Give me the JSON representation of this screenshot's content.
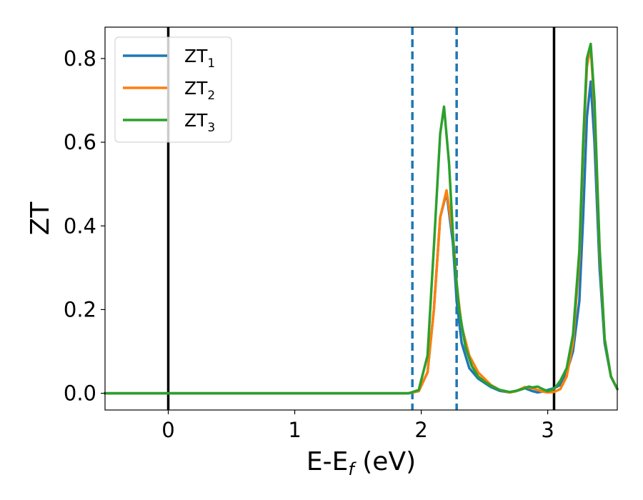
{
  "chart_data": {
    "type": "line",
    "xlabel": {
      "main": "E-E",
      "sub": "f",
      "unit": " (eV)"
    },
    "ylabel": "ZT",
    "xlim": [
      -0.5,
      3.55
    ],
    "ylim": [
      -0.04,
      0.875
    ],
    "xticks": [
      0,
      1,
      2,
      3
    ],
    "xtick_labels": [
      "0",
      "1",
      "2",
      "3"
    ],
    "yticks": [
      0.0,
      0.2,
      0.4,
      0.6,
      0.8
    ],
    "ytick_labels": [
      "0.0",
      "0.2",
      "0.4",
      "0.6",
      "0.8"
    ],
    "grid": false,
    "legend_position": "upper-left",
    "legend": [
      {
        "main": "ZT",
        "sub": "1",
        "color": "#1f77b4"
      },
      {
        "main": "ZT",
        "sub": "2",
        "color": "#ff7f0e"
      },
      {
        "main": "ZT",
        "sub": "3",
        "color": "#2ca02c"
      }
    ],
    "vlines": [
      {
        "x": 0.0,
        "style": "solid",
        "color": "#000000"
      },
      {
        "x": 3.05,
        "style": "solid",
        "color": "#000000"
      },
      {
        "x": 1.93,
        "style": "dashed",
        "color": "#1f77b4"
      },
      {
        "x": 2.28,
        "style": "dashed",
        "color": "#1f77b4"
      }
    ],
    "series": [
      {
        "name": "ZT₁",
        "color": "#1f77b4",
        "x": [
          -0.5,
          1.9,
          1.98,
          2.05,
          2.1,
          2.15,
          2.2,
          2.25,
          2.28,
          2.32,
          2.38,
          2.45,
          2.5,
          2.55,
          2.62,
          2.7,
          2.75,
          2.82,
          2.88,
          2.92,
          2.96,
          3.0,
          3.05,
          3.1,
          3.15,
          3.2,
          3.25,
          3.28,
          3.31,
          3.34,
          3.37,
          3.41,
          3.45,
          3.5,
          3.55
        ],
        "y": [
          0.0,
          0.0,
          0.005,
          0.05,
          0.2,
          0.42,
          0.48,
          0.36,
          0.22,
          0.12,
          0.06,
          0.035,
          0.025,
          0.015,
          0.006,
          0.002,
          0.005,
          0.012,
          0.005,
          0.002,
          0.004,
          0.008,
          0.012,
          0.02,
          0.05,
          0.1,
          0.22,
          0.42,
          0.66,
          0.745,
          0.6,
          0.3,
          0.12,
          0.04,
          0.01
        ]
      },
      {
        "name": "ZT₂",
        "color": "#ff7f0e",
        "x": [
          -0.5,
          1.9,
          1.98,
          2.05,
          2.1,
          2.15,
          2.2,
          2.25,
          2.28,
          2.32,
          2.38,
          2.45,
          2.5,
          2.55,
          2.62,
          2.7,
          2.75,
          2.82,
          2.88,
          2.92,
          2.96,
          3.0,
          3.05,
          3.1,
          3.15,
          3.2,
          3.25,
          3.28,
          3.31,
          3.34,
          3.37,
          3.41,
          3.45,
          3.5,
          3.55
        ],
        "y": [
          0.0,
          0.0,
          0.005,
          0.05,
          0.2,
          0.42,
          0.485,
          0.38,
          0.26,
          0.16,
          0.09,
          0.05,
          0.035,
          0.02,
          0.008,
          0.002,
          0.005,
          0.015,
          0.012,
          0.008,
          0.004,
          0.002,
          0.003,
          0.01,
          0.04,
          0.12,
          0.32,
          0.58,
          0.78,
          0.83,
          0.68,
          0.34,
          0.13,
          0.04,
          0.01
        ]
      },
      {
        "name": "ZT₃",
        "color": "#2ca02c",
        "x": [
          -0.5,
          1.9,
          1.98,
          2.05,
          2.1,
          2.15,
          2.18,
          2.22,
          2.26,
          2.3,
          2.35,
          2.4,
          2.45,
          2.5,
          2.55,
          2.62,
          2.7,
          2.75,
          2.82,
          2.85,
          2.88,
          2.92,
          2.96,
          3.0,
          3.05,
          3.1,
          3.15,
          3.2,
          3.25,
          3.28,
          3.31,
          3.34,
          3.37,
          3.41,
          3.45,
          3.5,
          3.55
        ],
        "y": [
          0.0,
          0.0,
          0.008,
          0.09,
          0.35,
          0.62,
          0.685,
          0.55,
          0.33,
          0.2,
          0.11,
          0.065,
          0.04,
          0.028,
          0.018,
          0.008,
          0.003,
          0.006,
          0.012,
          0.016,
          0.014,
          0.016,
          0.01,
          0.005,
          0.01,
          0.03,
          0.06,
          0.14,
          0.34,
          0.6,
          0.8,
          0.835,
          0.7,
          0.35,
          0.13,
          0.04,
          0.01
        ]
      }
    ]
  }
}
